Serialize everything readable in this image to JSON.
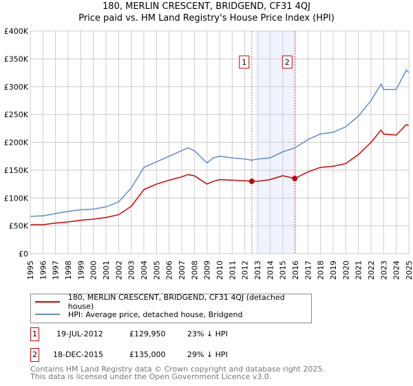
{
  "chart_data": {
    "type": "line",
    "title": "180, MERLIN CRESCENT, BRIDGEND, CF31 4QJ",
    "subtitle": "Price paid vs. HM Land Registry's House Price Index (HPI)",
    "xlim": [
      1995,
      2025
    ],
    "ylim": [
      0,
      400000
    ],
    "x_ticks": [
      "1995",
      "1996",
      "1997",
      "1998",
      "1999",
      "2000",
      "2001",
      "2002",
      "2003",
      "2004",
      "2005",
      "2006",
      "2007",
      "2008",
      "2009",
      "2010",
      "2011",
      "2012",
      "2013",
      "2014",
      "2015",
      "2016",
      "2017",
      "2018",
      "2019",
      "2020",
      "2021",
      "2022",
      "2023",
      "2024",
      "2025"
    ],
    "y_ticks": [
      {
        "v": 0,
        "l": "£0"
      },
      {
        "v": 50000,
        "l": "£50K"
      },
      {
        "v": 100000,
        "l": "£100K"
      },
      {
        "v": 150000,
        "l": "£150K"
      },
      {
        "v": 200000,
        "l": "£200K"
      },
      {
        "v": 250000,
        "l": "£250K"
      },
      {
        "v": 300000,
        "l": "£300K"
      },
      {
        "v": 350000,
        "l": "£350K"
      },
      {
        "v": 400000,
        "l": "£400K"
      }
    ],
    "grid": true,
    "series": [
      {
        "name": "180, MERLIN CRESCENT, BRIDGEND, CF31 4QJ (detached house)",
        "color": "#cc0000",
        "x": [
          1995,
          1996,
          1997,
          1998,
          1999,
          2000,
          2001,
          2002,
          2003,
          2004,
          2005,
          2006,
          2007,
          2007.5,
          2008,
          2009,
          2009.5,
          2010,
          2011,
          2012,
          2012.55,
          2013,
          2014,
          2015,
          2015.96,
          2017,
          2018,
          2019,
          2020,
          2021,
          2022,
          2022.8,
          2023,
          2024,
          2024.8,
          2025
        ],
        "y": [
          52000,
          52000,
          55000,
          57000,
          60000,
          62000,
          65000,
          70000,
          85000,
          115000,
          125000,
          132000,
          138000,
          142000,
          140000,
          125000,
          130000,
          133000,
          132000,
          131000,
          129950,
          130000,
          133000,
          140000,
          135000,
          147000,
          155000,
          157000,
          162000,
          178000,
          200000,
          222000,
          215000,
          213000,
          232000,
          230000
        ]
      },
      {
        "name": "HPI: Average price, detached house, Bridgend",
        "color": "#5b8bd0",
        "x": [
          1995,
          1996,
          1997,
          1998,
          1999,
          2000,
          2001,
          2002,
          2003,
          2004,
          2005,
          2006,
          2007,
          2007.5,
          2008,
          2009,
          2009.5,
          2010,
          2011,
          2012,
          2012.55,
          2013,
          2014,
          2015,
          2015.96,
          2017,
          2018,
          2019,
          2020,
          2021,
          2022,
          2022.8,
          2023,
          2024,
          2024.8,
          2025
        ],
        "y": [
          67000,
          68000,
          72000,
          76000,
          79000,
          80000,
          84000,
          93000,
          118000,
          155000,
          165000,
          175000,
          185000,
          190000,
          185000,
          163000,
          172000,
          175000,
          172000,
          170000,
          168000,
          170000,
          172000,
          183000,
          190000,
          205000,
          215000,
          218000,
          228000,
          247000,
          275000,
          305000,
          295000,
          295000,
          330000,
          325000
        ]
      }
    ],
    "sales": [
      {
        "id": "1",
        "x": 2012.55,
        "y": 129950
      },
      {
        "id": "2",
        "x": 2015.96,
        "y": 135000
      }
    ],
    "shade": [
      2013,
      2015.96
    ],
    "legend_position": "below"
  },
  "table": [
    {
      "id": "1",
      "date": "19-JUL-2012",
      "price": "£129,950",
      "hpi": "23% ↓ HPI"
    },
    {
      "id": "2",
      "date": "18-DEC-2015",
      "price": "£135,000",
      "hpi": "29% ↓ HPI"
    }
  ],
  "footer": {
    "line1": "Contains HM Land Registry data © Crown copyright and database right 2025.",
    "line2": "This data is licensed under the Open Government Licence v3.0."
  }
}
